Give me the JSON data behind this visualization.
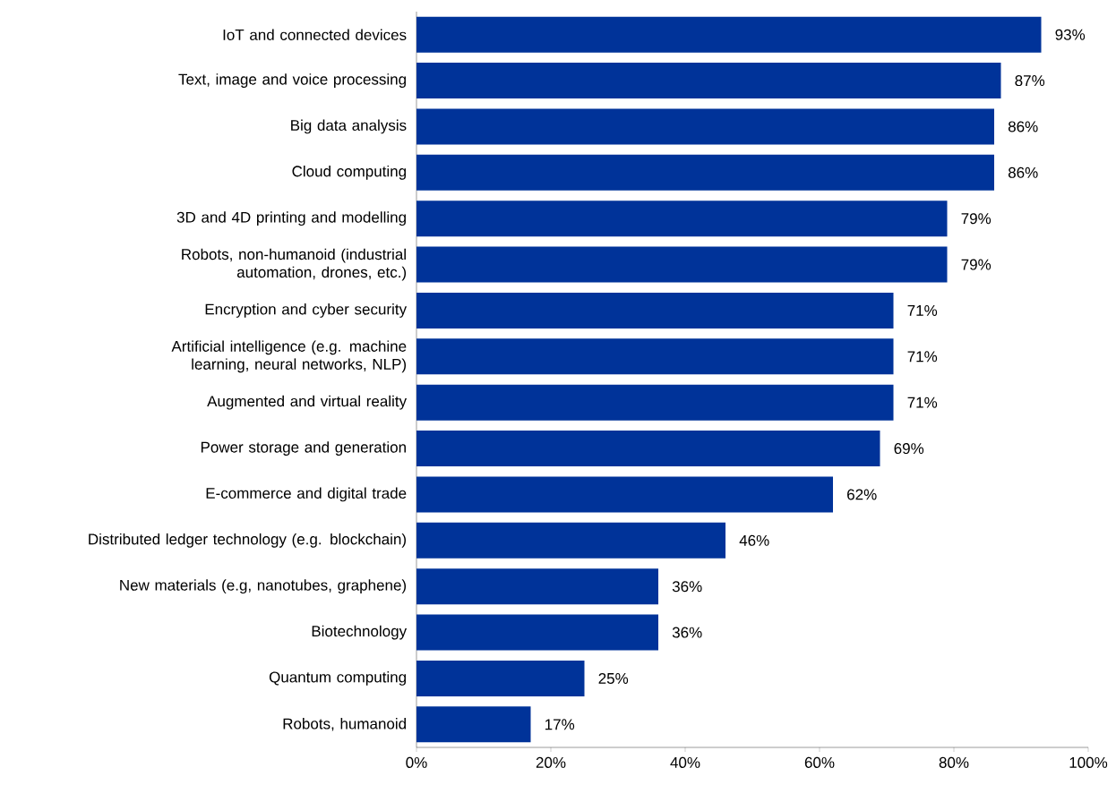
{
  "chart_data": {
    "type": "bar",
    "orientation": "horizontal",
    "categories": [
      "IoT and connected devices",
      "Text, image and voice processing",
      "Big data analysis",
      "Cloud computing",
      "3D and 4D printing and modelling",
      "Robots, non-humanoid (industrial automation, drones, etc.)",
      "Encryption and cyber security",
      "Artificial intelligence (e.g. machine learning, neural networks, NLP)",
      "Augmented and virtual reality",
      "Power storage and generation",
      "E-commerce and digital trade",
      "Distributed ledger technology (e.g. blockchain)",
      "New materials (e.g, nanotubes, graphene)",
      "Biotechnology",
      "Quantum computing",
      "Robots, humanoid"
    ],
    "values": [
      93,
      87,
      86,
      86,
      79,
      79,
      71,
      71,
      71,
      69,
      62,
      46,
      36,
      36,
      25,
      17
    ],
    "value_labels": [
      "93%",
      "87%",
      "86%",
      "86%",
      "79%",
      "79%",
      "71%",
      "71%",
      "71%",
      "69%",
      "62%",
      "46%",
      "36%",
      "36%",
      "25%",
      "17%"
    ],
    "color": "#003399",
    "xlim": [
      0,
      100
    ],
    "xticks": [
      {
        "value": 0,
        "label": "0%"
      },
      {
        "value": 20,
        "label": "20%"
      },
      {
        "value": 40,
        "label": "40%"
      },
      {
        "value": 60,
        "label": "60%"
      },
      {
        "value": 80,
        "label": "80%"
      },
      {
        "value": 100,
        "label": "100%"
      }
    ]
  }
}
